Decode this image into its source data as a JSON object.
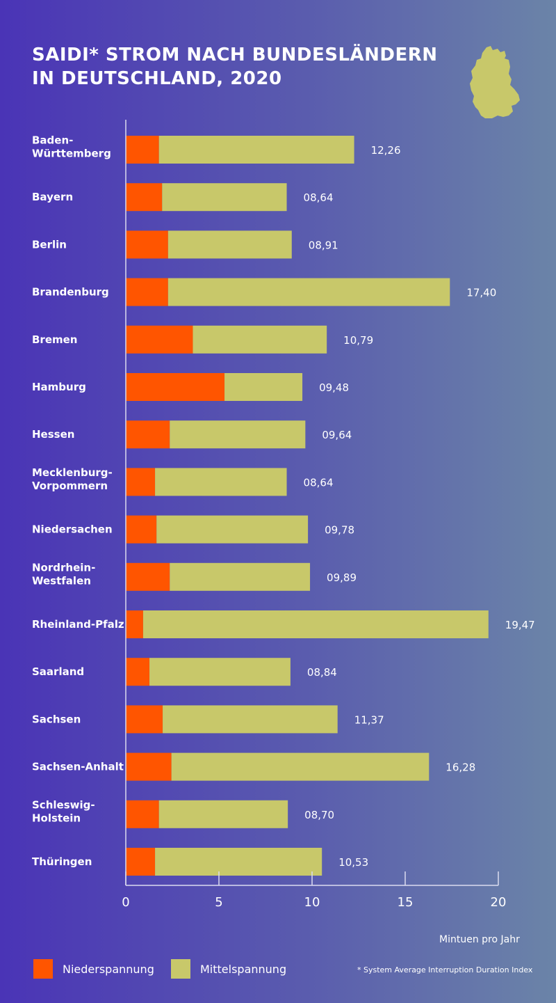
{
  "title_lines": [
    "SAIDI* STROM NACH BUNDESLÄNDERN",
    "IN DEUTSCHLAND, 2020"
  ],
  "colors": {
    "niederspannung": "#ff5500",
    "mittelspannung": "#c8c86a",
    "axis": "#dcdcf0",
    "text": "#ffffff",
    "map": "#c8c86a"
  },
  "map_icon": "germany-map-icon",
  "legend": {
    "niederspannung": "Niederspannung",
    "mittelspannung": "Mittelspannung"
  },
  "footnote": "* System Average Interruption Duration Index",
  "chart_data": {
    "type": "bar",
    "orientation": "horizontal",
    "stacked": true,
    "title": "SAIDI* STROM NACH BUNDESLÄNDERN IN DEUTSCHLAND, 2020",
    "xlabel": "Mintuen pro Jahr",
    "xlim": [
      0,
      20
    ],
    "xticks": [
      "0",
      "5",
      "10",
      "15",
      "20"
    ],
    "categories": [
      [
        "Baden-",
        "Württemberg"
      ],
      [
        "Bayern"
      ],
      [
        "Berlin"
      ],
      [
        "Brandenburg"
      ],
      [
        "Bremen"
      ],
      [
        "Hamburg"
      ],
      [
        "Hessen"
      ],
      [
        "Mecklenburg-",
        "Vorpommern"
      ],
      [
        "Niedersachen"
      ],
      [
        "Nordrhein-",
        "Westfalen"
      ],
      [
        "Rheinland-Pfalz"
      ],
      [
        "Saarland"
      ],
      [
        "Sachsen"
      ],
      [
        "Sachsen-Anhalt"
      ],
      [
        "Schleswig-",
        "Holstein"
      ],
      [
        "Thüringen"
      ]
    ],
    "series": [
      {
        "name": "Niederspannung",
        "color": "#ff5500",
        "values": [
          1.78,
          1.95,
          2.27,
          2.27,
          3.6,
          5.3,
          2.36,
          1.57,
          1.65,
          2.36,
          0.93,
          1.27,
          1.98,
          2.45,
          1.78,
          1.57
        ]
      },
      {
        "name": "Mittelspannung",
        "color": "#c8c86a",
        "values": [
          10.48,
          6.69,
          6.64,
          15.13,
          7.19,
          4.18,
          7.28,
          7.07,
          8.13,
          7.53,
          18.54,
          7.57,
          9.39,
          13.83,
          6.92,
          8.96
        ]
      }
    ],
    "totals": [
      "12,26",
      "08,64",
      "08,91",
      "17,40",
      "10,79",
      "09,48",
      "09,64",
      "08,64",
      "09,78",
      "09,89",
      "19,47",
      "08,84",
      "11,37",
      "16,28",
      "08,70",
      "10,53"
    ],
    "grid": false,
    "legend_position": "bottom-left"
  }
}
